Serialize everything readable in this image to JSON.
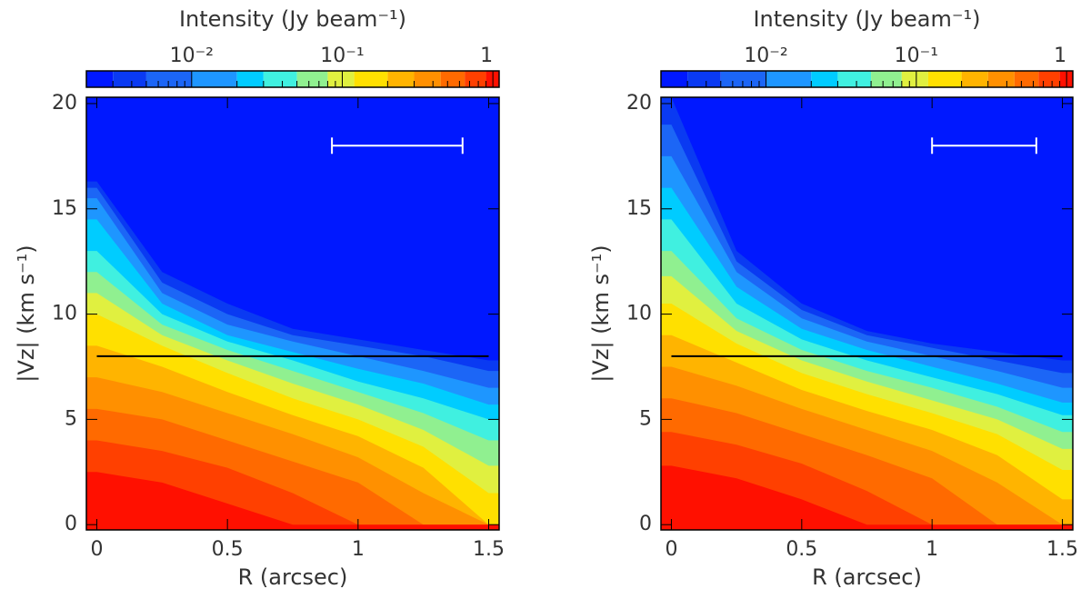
{
  "chart_data": [
    {
      "type": "contour",
      "colorbar_label": "Intensity (Jy beam⁻¹)",
      "xlabel": "R (arcsec)",
      "ylabel": "|Vz| (km s⁻¹)",
      "xlim": [
        -0.04,
        1.54
      ],
      "ylim": [
        -0.25,
        20.3
      ],
      "xticks": [
        0,
        0.5,
        1,
        1.5
      ],
      "yticks": [
        0,
        5,
        10,
        15,
        20
      ],
      "colorbar_scale": "log",
      "colorbar_lim": [
        0.002,
        1.1
      ],
      "colorbar_ticks": [
        {
          "value": 0.01,
          "label": "10⁻²"
        },
        {
          "value": 0.1,
          "label": "10⁻¹"
        },
        1
      ],
      "colorbar_minor_ticks": [
        0.003,
        0.004,
        0.005,
        0.006,
        0.007,
        0.008,
        0.009,
        0.02,
        0.03,
        0.04,
        0.05,
        0.06,
        0.07,
        0.08,
        0.09,
        0.2,
        0.3,
        0.4,
        0.5,
        0.6,
        0.7,
        0.8,
        0.9
      ],
      "background_color": "#0018ff",
      "r": [
        0,
        0.25,
        0.5,
        0.75,
        1,
        1.25,
        1.5
      ],
      "contours": [
        {
          "level": 0.003,
          "color": "#0a3af2",
          "values": [
            16.3,
            12,
            10.5,
            9.3,
            8.8,
            8.3,
            7.8
          ]
        },
        {
          "level": 0.005,
          "color": "#1c66f6",
          "values": [
            16,
            11.5,
            10,
            9,
            8.5,
            8,
            7.3
          ]
        },
        {
          "level": 0.01,
          "color": "#1e96ff",
          "values": [
            15.5,
            11,
            9.5,
            8.7,
            8,
            7.3,
            6.5
          ]
        },
        {
          "level": 0.02,
          "color": "#00ccff",
          "values": [
            14.5,
            10.5,
            9,
            8.2,
            7.4,
            6.7,
            5.7
          ]
        },
        {
          "level": 0.03,
          "color": "#40f0e0",
          "values": [
            13,
            10,
            8.7,
            7.8,
            6.8,
            6,
            5
          ]
        },
        {
          "level": 0.05,
          "color": "#90f090",
          "values": [
            12,
            9.5,
            8.3,
            7.3,
            6.3,
            5.3,
            4
          ]
        },
        {
          "level": 0.08,
          "color": "#e0f040",
          "values": [
            11,
            9,
            7.8,
            6.7,
            5.7,
            4.5,
            2.8
          ]
        },
        {
          "level": 0.12,
          "color": "#ffe000",
          "values": [
            10,
            8.5,
            7.2,
            6,
            5,
            3.7,
            1.5
          ]
        },
        {
          "level": 0.2,
          "color": "#ffb400",
          "values": [
            8.5,
            7.5,
            6.3,
            5.2,
            4.2,
            2.7,
            0
          ]
        },
        {
          "level": 0.3,
          "color": "#ff9000",
          "values": [
            7,
            6.3,
            5.3,
            4.3,
            3.2,
            1.5,
            0
          ]
        },
        {
          "level": 0.45,
          "color": "#ff6a00",
          "values": [
            5.5,
            5,
            4,
            3,
            2,
            0,
            0
          ]
        },
        {
          "level": 0.65,
          "color": "#ff4000",
          "values": [
            4,
            3.5,
            2.7,
            1.5,
            0,
            0,
            0
          ]
        },
        {
          "level": 0.9,
          "color": "#ff1000",
          "values": [
            2.5,
            2,
            1,
            0,
            0,
            0,
            0
          ]
        }
      ],
      "hline": 8,
      "scale_bar": {
        "x": [
          0.9,
          1.4
        ],
        "y": 18
      }
    },
    {
      "type": "contour",
      "colorbar_label": "Intensity (Jy beam⁻¹)",
      "xlabel": "R (arcsec)",
      "ylabel": "|Vz| (km s⁻¹)",
      "xlim": [
        -0.04,
        1.54
      ],
      "ylim": [
        -0.25,
        20.3
      ],
      "xticks": [
        0,
        0.5,
        1,
        1.5
      ],
      "yticks": [
        0,
        5,
        10,
        15,
        20
      ],
      "colorbar_scale": "log",
      "colorbar_lim": [
        0.002,
        1.1
      ],
      "colorbar_ticks": [
        {
          "value": 0.01,
          "label": "10⁻²"
        },
        {
          "value": 0.1,
          "label": "10⁻¹"
        },
        1
      ],
      "colorbar_minor_ticks": [
        0.003,
        0.004,
        0.005,
        0.006,
        0.007,
        0.008,
        0.009,
        0.02,
        0.03,
        0.04,
        0.05,
        0.06,
        0.07,
        0.08,
        0.09,
        0.2,
        0.3,
        0.4,
        0.5,
        0.6,
        0.7,
        0.8,
        0.9
      ],
      "background_color": "#0018ff",
      "r": [
        0,
        0.25,
        0.5,
        0.75,
        1,
        1.25,
        1.5
      ],
      "contours": [
        {
          "level": 0.003,
          "color": "#0a3af2",
          "values": [
            20.3,
            13,
            10.5,
            9.2,
            8.6,
            8.2,
            7.8
          ]
        },
        {
          "level": 0.005,
          "color": "#1c66f6",
          "values": [
            19,
            12.5,
            10.2,
            9,
            8.4,
            7.8,
            7.2
          ]
        },
        {
          "level": 0.01,
          "color": "#1e96ff",
          "values": [
            17.5,
            12,
            9.8,
            8.7,
            8,
            7.3,
            6.5
          ]
        },
        {
          "level": 0.02,
          "color": "#00ccff",
          "values": [
            16,
            11.3,
            9.3,
            8.3,
            7.5,
            6.7,
            5.8
          ]
        },
        {
          "level": 0.03,
          "color": "#40f0e0",
          "values": [
            14.5,
            10.5,
            8.8,
            7.8,
            7,
            6.2,
            5.2
          ]
        },
        {
          "level": 0.05,
          "color": "#90f090",
          "values": [
            13,
            9.8,
            8.3,
            7.3,
            6.5,
            5.6,
            4.4
          ]
        },
        {
          "level": 0.08,
          "color": "#e0f040",
          "values": [
            11.8,
            9.2,
            7.8,
            6.8,
            5.9,
            5,
            3.6
          ]
        },
        {
          "level": 0.12,
          "color": "#ffe000",
          "values": [
            10.5,
            8.6,
            7.2,
            6.2,
            5.3,
            4.3,
            2.6
          ]
        },
        {
          "level": 0.2,
          "color": "#ffb400",
          "values": [
            9,
            7.7,
            6.4,
            5.4,
            4.5,
            3.3,
            1.2
          ]
        },
        {
          "level": 0.3,
          "color": "#ff9000",
          "values": [
            7.5,
            6.6,
            5.5,
            4.5,
            3.5,
            2,
            0
          ]
        },
        {
          "level": 0.45,
          "color": "#ff6a00",
          "values": [
            6,
            5.3,
            4.3,
            3.3,
            2.2,
            0,
            0
          ]
        },
        {
          "level": 0.65,
          "color": "#ff4000",
          "values": [
            4.4,
            3.8,
            2.9,
            1.6,
            0,
            0,
            0
          ]
        },
        {
          "level": 0.9,
          "color": "#ff1000",
          "values": [
            2.8,
            2.2,
            1.2,
            0,
            0,
            0,
            0
          ]
        }
      ],
      "hline": 8,
      "scale_bar": {
        "x": [
          1,
          1.4
        ],
        "y": 18
      }
    }
  ]
}
